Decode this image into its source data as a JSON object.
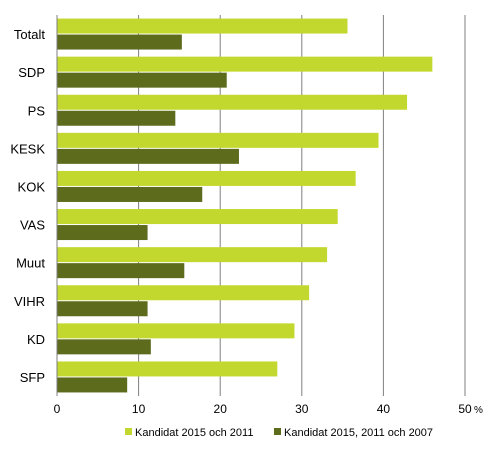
{
  "chart_data": {
    "type": "bar",
    "orientation": "horizontal",
    "categories": [
      "Totalt",
      "SDP",
      "PS",
      "KESK",
      "KOK",
      "VAS",
      "Muut",
      "VIHR",
      "KD",
      "SFP"
    ],
    "series": [
      {
        "name": "Kandidat 2015 och 2011",
        "color": "#c3d82f",
        "values": [
          35.6,
          46.0,
          42.9,
          39.4,
          36.6,
          34.4,
          33.1,
          30.9,
          29.1,
          27.0
        ]
      },
      {
        "name": "Kandidat 2015, 2011 och 2007",
        "color": "#5c6b1c",
        "values": [
          15.3,
          20.8,
          14.5,
          22.3,
          17.8,
          11.1,
          15.6,
          11.1,
          11.5,
          8.6
        ]
      }
    ],
    "xlim": [
      0,
      50
    ],
    "ticks": [
      "0",
      "10",
      "20",
      "30",
      "40",
      "50"
    ],
    "unit": "%",
    "grid": "vertical",
    "legend": "bottom"
  }
}
